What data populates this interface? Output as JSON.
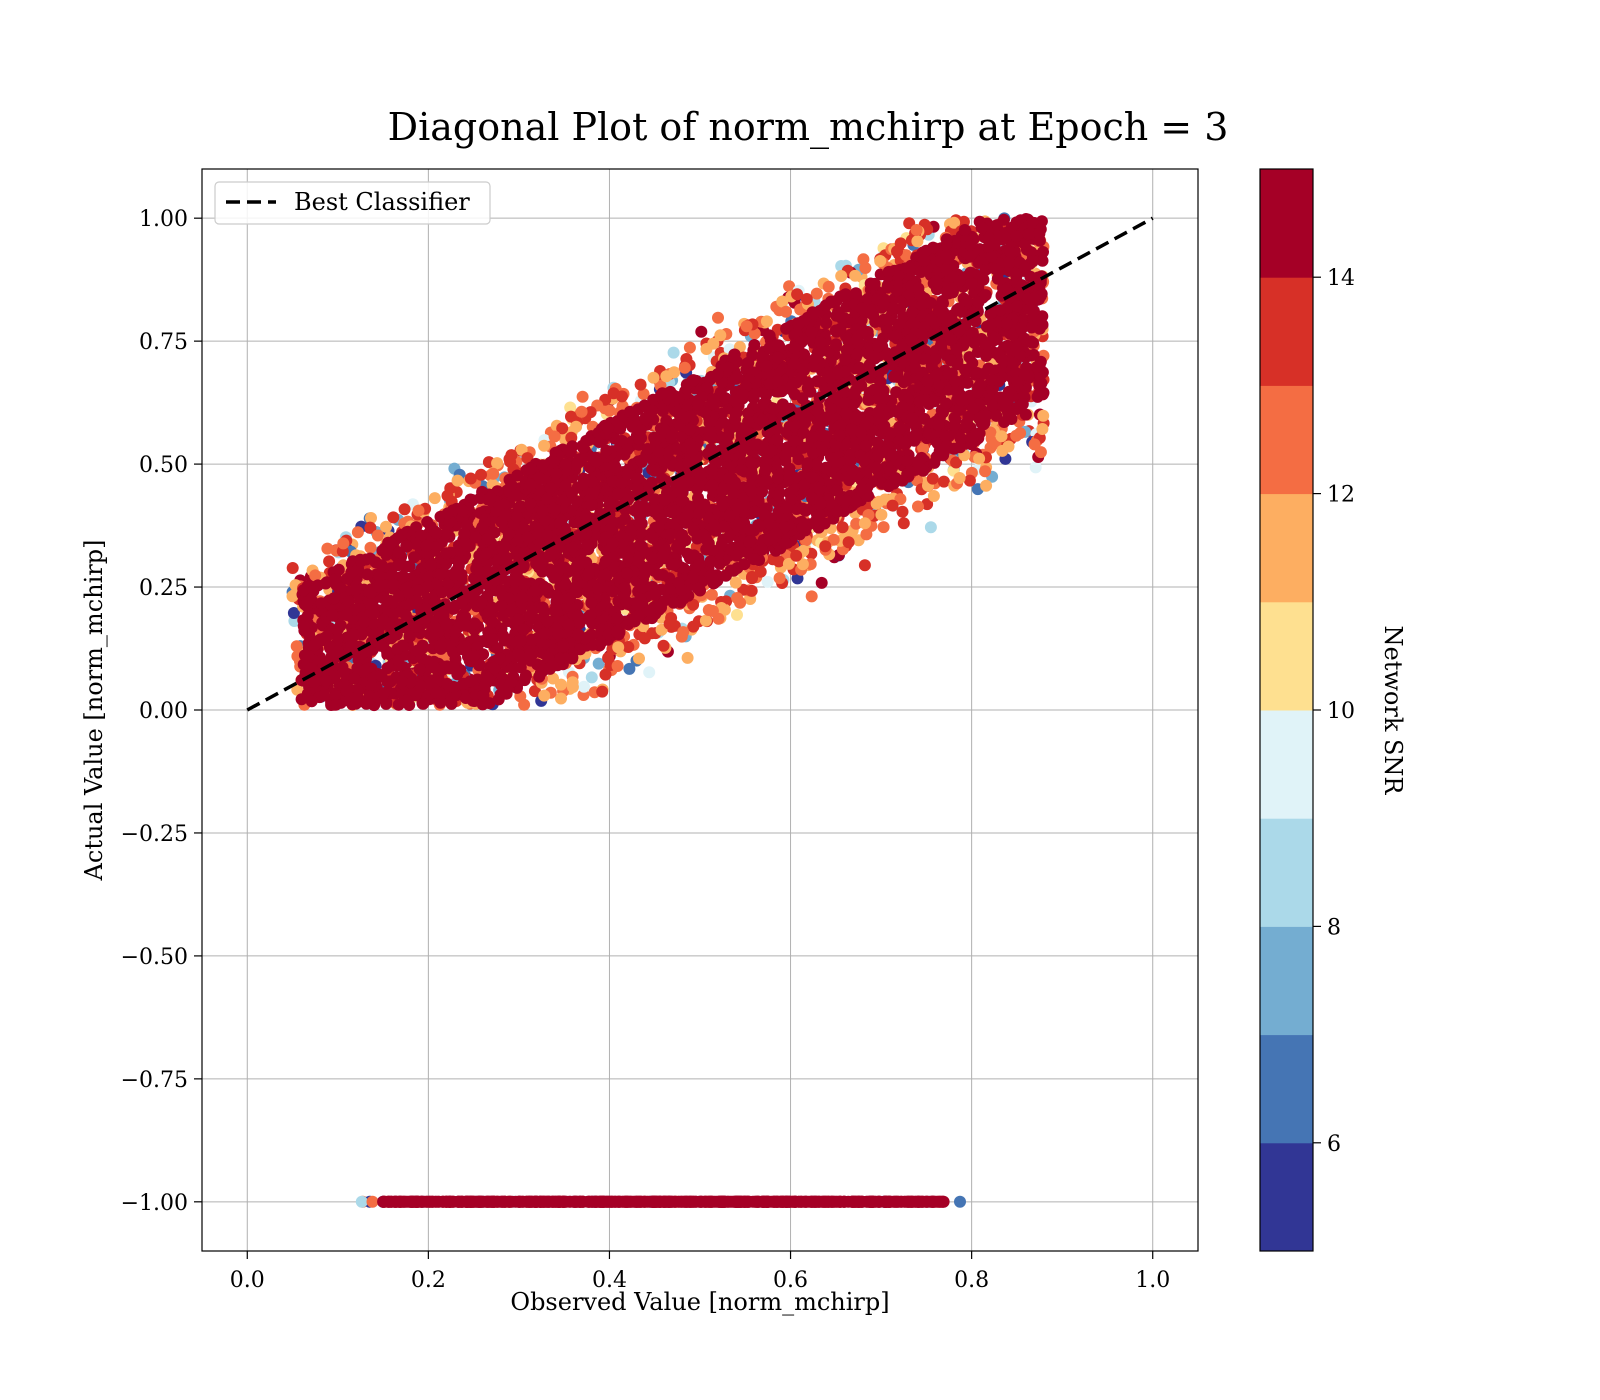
{
  "chart_data": {
    "type": "scatter",
    "title": "Diagonal Plot of norm_mchirp at Epoch = 3",
    "xlabel": "Observed Value [norm_mchirp]",
    "ylabel": "Actual Value [norm_mchirp]",
    "xlim": [
      -0.05,
      1.05
    ],
    "ylim": [
      -1.1,
      1.1
    ],
    "x_ticks": [
      0.0,
      0.2,
      0.4,
      0.6,
      0.8,
      1.0
    ],
    "x_tick_labels": [
      "0.0",
      "0.2",
      "0.4",
      "0.6",
      "0.8",
      "1.0"
    ],
    "y_ticks": [
      1.0,
      0.75,
      0.5,
      0.25,
      0.0,
      -0.25,
      -0.5,
      -0.75,
      -1.0
    ],
    "y_tick_labels": [
      "1.00",
      "0.75",
      "0.50",
      "0.25",
      "0.00",
      "−0.25",
      "−0.50",
      "−0.75",
      "−1.00"
    ],
    "grid": true,
    "legend": {
      "position": "upper-left",
      "entries": [
        "Best Classifier"
      ]
    },
    "reference_line": {
      "name": "Best Classifier",
      "x": [
        0.0,
        1.0
      ],
      "y": [
        0.0,
        1.0
      ],
      "style": "dashed",
      "color": "#000000"
    },
    "scatter_regions": {
      "main_band": {
        "x_shift_range": [
          -0.3,
          0.42
        ],
        "y_range": [
          0.01,
          1.0
        ],
        "x_min": 0.05,
        "x_max": 0.88,
        "color_by": "Network SNR",
        "dense_snr": 15
      },
      "invalid_row": {
        "y": -1.0,
        "x_range": [
          0.12,
          0.79
        ],
        "color_by": "Network SNR",
        "dense_snr": 15
      }
    },
    "colorbar": {
      "label": "Network SNR",
      "range": [
        5,
        15
      ],
      "ticks": [
        6,
        8,
        10,
        12,
        14
      ],
      "tick_labels": [
        "6",
        "8",
        "10",
        "12",
        "14"
      ],
      "colors": [
        "#313695",
        "#4575b4",
        "#74add1",
        "#abd9e9",
        "#e0f3f8",
        "#fee090",
        "#fdae61",
        "#f46d43",
        "#d73027",
        "#a50026"
      ]
    }
  }
}
